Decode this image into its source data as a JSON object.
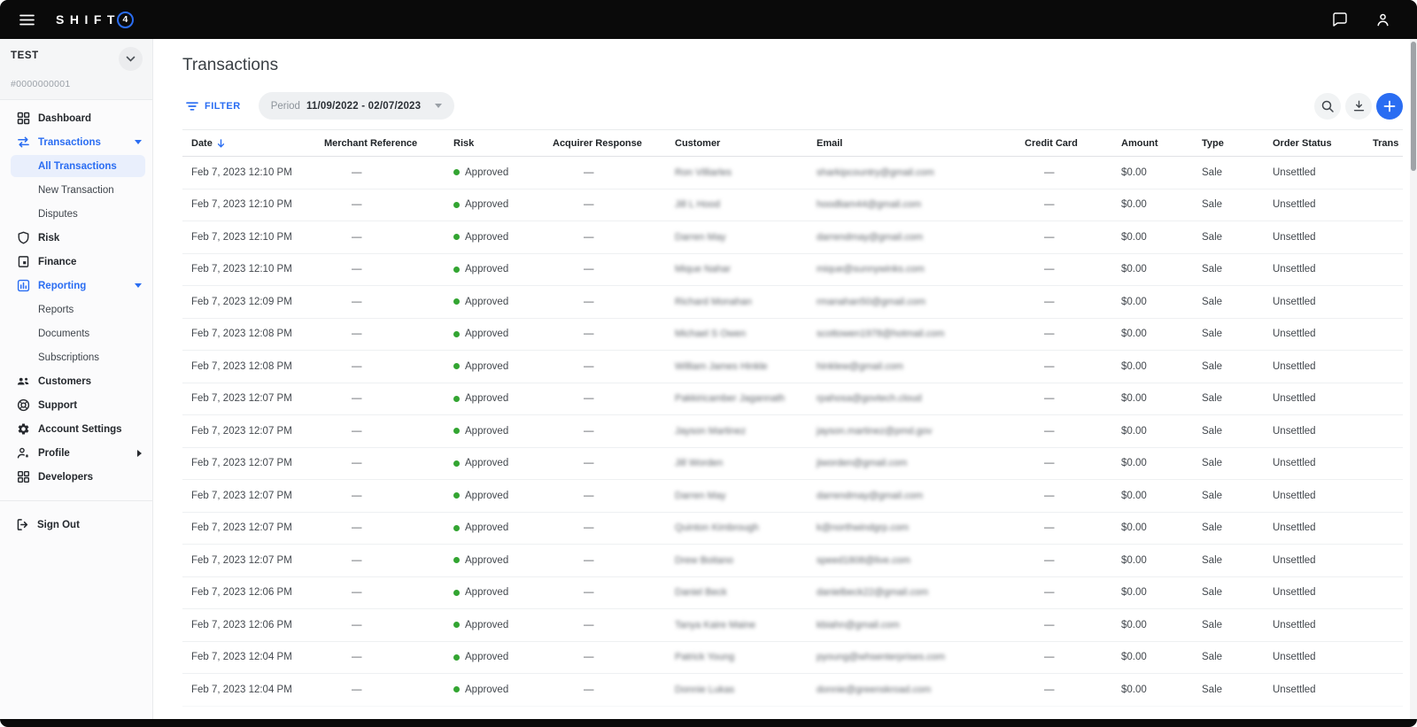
{
  "colors": {
    "accent": "#2a6df2",
    "approved_dot": "#33a532"
  },
  "topbar": {
    "brand": "SHIFT",
    "brand_badge": "4"
  },
  "sidebar": {
    "account": {
      "name": "TEST",
      "id": "#0000000001"
    },
    "items": [
      {
        "label": "Dashboard",
        "icon": "dashboard"
      },
      {
        "label": "Transactions",
        "icon": "transactions",
        "active": true,
        "expanded": true
      },
      {
        "label": "All Transactions",
        "sub": true,
        "selected": true
      },
      {
        "label": "New Transaction",
        "sub": true
      },
      {
        "label": "Disputes",
        "sub": true
      },
      {
        "label": "Risk",
        "icon": "shield"
      },
      {
        "label": "Finance",
        "icon": "finance"
      },
      {
        "label": "Reporting",
        "icon": "reporting",
        "active": true,
        "expanded": true
      },
      {
        "label": "Reports",
        "sub": true
      },
      {
        "label": "Documents",
        "sub": true
      },
      {
        "label": "Subscriptions",
        "sub": true
      },
      {
        "label": "Customers",
        "icon": "customers"
      },
      {
        "label": "Support",
        "icon": "support"
      },
      {
        "label": "Account Settings",
        "icon": "settings"
      },
      {
        "label": "Profile",
        "icon": "profile",
        "has_submenu": true
      },
      {
        "label": "Developers",
        "icon": "developers"
      }
    ],
    "sign_out_label": "Sign Out"
  },
  "main": {
    "title": "Transactions",
    "toolbar": {
      "filter_label": "FILTER",
      "period_label": "Period",
      "period_value": "11/09/2022 - 02/07/2023"
    },
    "table": {
      "columns": [
        "Date",
        "Merchant Reference",
        "Risk",
        "Acquirer Response",
        "Customer",
        "Email",
        "Credit Card",
        "Amount",
        "Type",
        "Order Status",
        "Trans"
      ],
      "sorted_by": "Date",
      "sort_direction": "desc",
      "pii_blurred": true,
      "rows": [
        {
          "date": "Feb 7, 2023 12:10 PM",
          "merchant_reference": "—",
          "risk": "Approved",
          "acquirer_response": "—",
          "customer": "Ron Villiarles",
          "email": "sharkipcountry@gmail.com",
          "credit_card": "—",
          "amount": "$0.00",
          "type": "Sale",
          "order_status": "Unsettled"
        },
        {
          "date": "Feb 7, 2023 12:10 PM",
          "merchant_reference": "—",
          "risk": "Approved",
          "acquirer_response": "—",
          "customer": "Jill L Hood",
          "email": "hoodliam44@gmail.com",
          "credit_card": "—",
          "amount": "$0.00",
          "type": "Sale",
          "order_status": "Unsettled"
        },
        {
          "date": "Feb 7, 2023 12:10 PM",
          "merchant_reference": "—",
          "risk": "Approved",
          "acquirer_response": "—",
          "customer": "Darren May",
          "email": "darrendmay@gmail.com",
          "credit_card": "—",
          "amount": "$0.00",
          "type": "Sale",
          "order_status": "Unsettled"
        },
        {
          "date": "Feb 7, 2023 12:10 PM",
          "merchant_reference": "—",
          "risk": "Approved",
          "acquirer_response": "—",
          "customer": "Mique Nahar",
          "email": "mique@sunnywinks.com",
          "credit_card": "—",
          "amount": "$0.00",
          "type": "Sale",
          "order_status": "Unsettled"
        },
        {
          "date": "Feb 7, 2023 12:09 PM",
          "merchant_reference": "—",
          "risk": "Approved",
          "acquirer_response": "—",
          "customer": "Richard Monahan",
          "email": "rmanahan50@gmail.com",
          "credit_card": "—",
          "amount": "$0.00",
          "type": "Sale",
          "order_status": "Unsettled"
        },
        {
          "date": "Feb 7, 2023 12:08 PM",
          "merchant_reference": "—",
          "risk": "Approved",
          "acquirer_response": "—",
          "customer": "Michael S Owen",
          "email": "scottowen1978@hotmail.com",
          "credit_card": "—",
          "amount": "$0.00",
          "type": "Sale",
          "order_status": "Unsettled"
        },
        {
          "date": "Feb 7, 2023 12:08 PM",
          "merchant_reference": "—",
          "risk": "Approved",
          "acquirer_response": "—",
          "customer": "William James Hinkle",
          "email": "hinklew@gmail.com",
          "credit_card": "—",
          "amount": "$0.00",
          "type": "Sale",
          "order_status": "Unsettled"
        },
        {
          "date": "Feb 7, 2023 12:07 PM",
          "merchant_reference": "—",
          "risk": "Approved",
          "acquirer_response": "—",
          "customer": "Pakkiricamber Jagannath",
          "email": "rpahosa@govtech.cloud",
          "credit_card": "—",
          "amount": "$0.00",
          "type": "Sale",
          "order_status": "Unsettled"
        },
        {
          "date": "Feb 7, 2023 12:07 PM",
          "merchant_reference": "—",
          "risk": "Approved",
          "acquirer_response": "—",
          "customer": "Jayson Martinez",
          "email": "jayson.martinez@pmd.gov",
          "credit_card": "—",
          "amount": "$0.00",
          "type": "Sale",
          "order_status": "Unsettled"
        },
        {
          "date": "Feb 7, 2023 12:07 PM",
          "merchant_reference": "—",
          "risk": "Approved",
          "acquirer_response": "—",
          "customer": "Jill Worden",
          "email": "jiworden@gmail.com",
          "credit_card": "—",
          "amount": "$0.00",
          "type": "Sale",
          "order_status": "Unsettled"
        },
        {
          "date": "Feb 7, 2023 12:07 PM",
          "merchant_reference": "—",
          "risk": "Approved",
          "acquirer_response": "—",
          "customer": "Darren May",
          "email": "darrendmay@gmail.com",
          "credit_card": "—",
          "amount": "$0.00",
          "type": "Sale",
          "order_status": "Unsettled"
        },
        {
          "date": "Feb 7, 2023 12:07 PM",
          "merchant_reference": "—",
          "risk": "Approved",
          "acquirer_response": "—",
          "customer": "Quinton Kimbrough",
          "email": "k@northwindgrp.com",
          "credit_card": "—",
          "amount": "$0.00",
          "type": "Sale",
          "order_status": "Unsettled"
        },
        {
          "date": "Feb 7, 2023 12:07 PM",
          "merchant_reference": "—",
          "risk": "Approved",
          "acquirer_response": "—",
          "customer": "Drew Boitano",
          "email": "speed1808@live.com",
          "credit_card": "—",
          "amount": "$0.00",
          "type": "Sale",
          "order_status": "Unsettled"
        },
        {
          "date": "Feb 7, 2023 12:06 PM",
          "merchant_reference": "—",
          "risk": "Approved",
          "acquirer_response": "—",
          "customer": "Daniel Beck",
          "email": "danielbeck22@gmail.com",
          "credit_card": "—",
          "amount": "$0.00",
          "type": "Sale",
          "order_status": "Unsettled"
        },
        {
          "date": "Feb 7, 2023 12:06 PM",
          "merchant_reference": "—",
          "risk": "Approved",
          "acquirer_response": "—",
          "customer": "Tanya Kaire Maine",
          "email": "kbiahn@gmail.com",
          "credit_card": "—",
          "amount": "$0.00",
          "type": "Sale",
          "order_status": "Unsettled"
        },
        {
          "date": "Feb 7, 2023 12:04 PM",
          "merchant_reference": "—",
          "risk": "Approved",
          "acquirer_response": "—",
          "customer": "Patrick Young",
          "email": "pyoung@whsenterprises.com",
          "credit_card": "—",
          "amount": "$0.00",
          "type": "Sale",
          "order_status": "Unsettled"
        },
        {
          "date": "Feb 7, 2023 12:04 PM",
          "merchant_reference": "—",
          "risk": "Approved",
          "acquirer_response": "—",
          "customer": "Donnie Lukas",
          "email": "donnie@greenskroad.com",
          "credit_card": "—",
          "amount": "$0.00",
          "type": "Sale",
          "order_status": "Unsettled"
        }
      ]
    }
  }
}
